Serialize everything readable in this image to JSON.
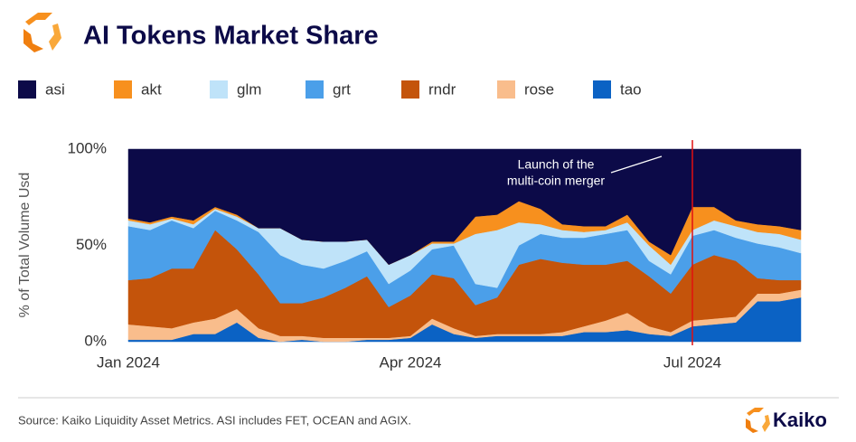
{
  "chart_data": {
    "type": "stacked_area",
    "title": "AI Tokens Market Share",
    "ylabel": "% of Total Volume Usd",
    "annotation": [
      "Launch of the",
      "multi-coin merger"
    ],
    "source": "Source: Kaiko Liquidity Asset Metrics. ASI includes FET, OCEAN and AGIX.",
    "brand": "Kaiko",
    "categories": [
      "Jan 2024",
      null,
      null,
      null,
      null,
      null,
      null,
      null,
      null,
      null,
      null,
      null,
      null,
      "Apr 2024",
      null,
      null,
      null,
      null,
      null,
      null,
      null,
      null,
      null,
      null,
      null,
      null,
      "Jul 2024",
      null,
      null,
      null,
      null,
      null
    ],
    "ylim": [
      0,
      100
    ],
    "yticks": [
      {
        "value": 0,
        "label": "0%"
      },
      {
        "value": 50,
        "label": "50%"
      },
      {
        "value": 100,
        "label": "100%"
      }
    ],
    "series": [
      {
        "name": "asi",
        "color": "#0c0a48",
        "values": [
          36,
          38,
          35,
          37,
          30,
          34,
          41,
          41,
          47,
          48,
          48,
          47,
          60,
          55,
          48,
          48,
          35,
          34,
          27,
          31,
          39,
          40,
          40,
          34,
          48,
          55,
          30,
          30,
          37,
          39,
          40,
          42
        ]
      },
      {
        "name": "akt",
        "color": "#f7901e",
        "values": [
          1,
          1,
          1,
          2,
          1,
          1,
          0,
          0,
          0,
          0,
          0,
          0,
          0,
          0,
          1,
          1,
          9,
          8,
          11,
          8,
          3,
          3,
          2,
          4,
          2,
          5,
          12,
          7,
          3,
          4,
          4,
          5
        ]
      },
      {
        "name": "glm",
        "color": "#bfe3f9",
        "values": [
          3,
          3,
          1,
          2,
          1,
          2,
          2,
          14,
          13,
          14,
          10,
          6,
          10,
          8,
          3,
          1,
          26,
          30,
          12,
          5,
          4,
          3,
          2,
          4,
          8,
          5,
          3,
          5,
          6,
          6,
          7,
          7
        ]
      },
      {
        "name": "grt",
        "color": "#4b9fe9",
        "values": [
          28,
          25,
          25,
          21,
          10,
          15,
          22,
          25,
          20,
          15,
          14,
          13,
          12,
          13,
          13,
          17,
          11,
          5,
          10,
          13,
          13,
          14,
          16,
          16,
          8,
          10,
          15,
          13,
          12,
          18,
          17,
          14
        ]
      },
      {
        "name": "rndr",
        "color": "#c4540b",
        "values": [
          23,
          25,
          31,
          28,
          46,
          31,
          28,
          17,
          17,
          21,
          26,
          32,
          16,
          21,
          23,
          26,
          16,
          19,
          36,
          39,
          36,
          32,
          29,
          27,
          26,
          20,
          29,
          33,
          29,
          8,
          7,
          5
        ]
      },
      {
        "name": "rose",
        "color": "#f9bd8c",
        "values": [
          8,
          7,
          6,
          6,
          8,
          7,
          5,
          3,
          2,
          2,
          2,
          1,
          1,
          1,
          3,
          3,
          1,
          1,
          1,
          1,
          2,
          3,
          6,
          9,
          4,
          2,
          3,
          3,
          3,
          4,
          4,
          4
        ]
      },
      {
        "name": "tao",
        "color": "#0b62c4",
        "values": [
          1,
          1,
          1,
          4,
          4,
          10,
          2,
          0,
          1,
          0,
          0,
          1,
          1,
          2,
          9,
          4,
          2,
          3,
          3,
          3,
          3,
          5,
          5,
          6,
          4,
          3,
          8,
          9,
          10,
          21,
          21,
          23
        ]
      }
    ]
  }
}
